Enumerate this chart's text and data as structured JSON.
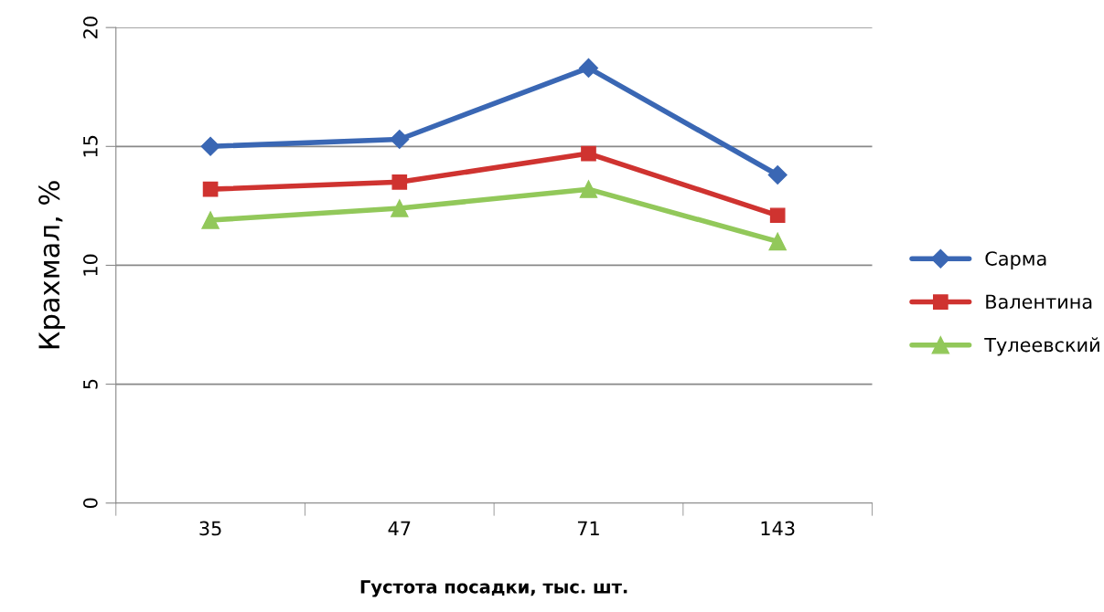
{
  "chart_data": {
    "type": "line",
    "xlabel": "Густота посадки, тыс. шт.",
    "ylabel": "Крахмал, %",
    "categories": [
      "35",
      "47",
      "71",
      "143"
    ],
    "series": [
      {
        "name": "Сарма",
        "color": "#3a67b4",
        "marker": "diamond",
        "values": [
          15.0,
          15.3,
          18.3,
          13.8
        ]
      },
      {
        "name": "Валентина",
        "color": "#cf3330",
        "marker": "square",
        "values": [
          13.2,
          13.5,
          14.7,
          12.1
        ]
      },
      {
        "name": "Тулеевский",
        "color": "#92c85a",
        "marker": "triangle",
        "values": [
          11.9,
          12.4,
          13.2,
          11.0
        ]
      }
    ],
    "ylim": [
      0,
      20
    ],
    "yticks": [
      0,
      5,
      10,
      15,
      20
    ],
    "grid": "y",
    "legend": "right",
    "line_style": "solid"
  }
}
